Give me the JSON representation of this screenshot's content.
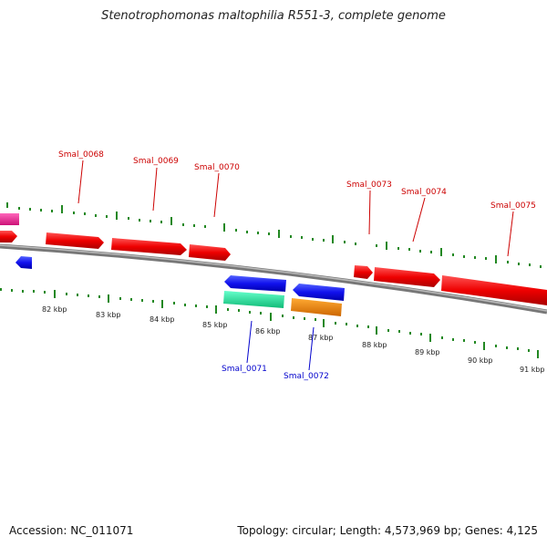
{
  "title": "Stenotrophomonas maltophilia R551-3, complete genome",
  "footer": {
    "accession": "Accession: NC_011071",
    "summary": "Topology: circular; Length: 4,573,969 bp; Genes: 4,125"
  },
  "colors": {
    "forward": "#ee0000",
    "reverse": "#1111ee",
    "pink": "#ee2288",
    "teal": "#22dd99",
    "orange": "#ee8800",
    "tick": "#228822",
    "backbone": "#888888",
    "label_forward": "#cc0000",
    "label_reverse": "#0000cc"
  },
  "scale_labels": [
    "82 kbp",
    "83 kbp",
    "84 kbp",
    "85 kbp",
    "86 kbp",
    "87 kbp",
    "88 kbp",
    "89 kbp",
    "90 kbp",
    "91 kbp"
  ],
  "genes_top": [
    "Smal_0068",
    "Smal_0069",
    "Smal_0070",
    "Smal_0073",
    "Smal_0074",
    "Smal_0075"
  ],
  "genes_bottom": [
    "Smal_0071",
    "Smal_0072"
  ]
}
